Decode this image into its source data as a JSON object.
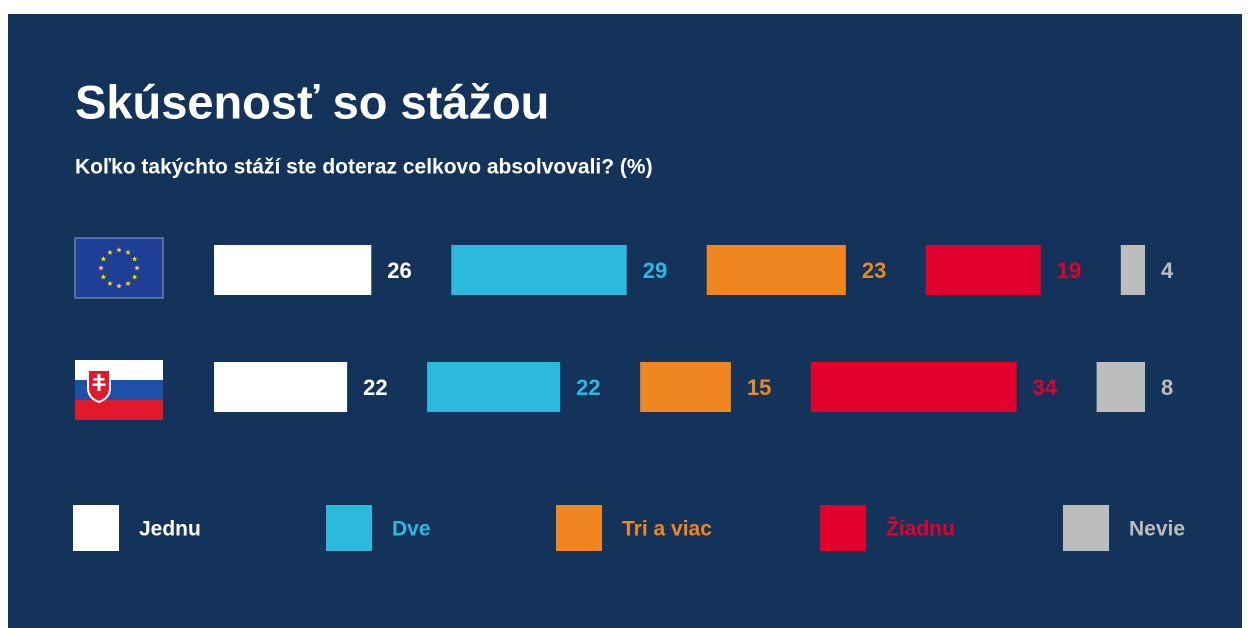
{
  "chart_data": {
    "type": "bar",
    "title": "Skúsenosť so stážou",
    "subtitle": "Koľko takýchto stáží ste doteraz celkovo absolvovali? (%)",
    "categories": [
      null,
      null
    ],
    "series": [
      {
        "name": "Jednu",
        "color": "#ffffff",
        "values": [
          26,
          22
        ]
      },
      {
        "name": "Dve",
        "color": "#2bb9de",
        "values": [
          29,
          22
        ]
      },
      {
        "name": "Tri a viac",
        "color": "#f0861f",
        "values": [
          23,
          15
        ]
      },
      {
        "name": "Žiadnu",
        "color": "#e2002d",
        "values": [
          19,
          34
        ]
      },
      {
        "name": "Nevie",
        "color": "#bdbdbd",
        "values": [
          4,
          8
        ]
      }
    ]
  }
}
